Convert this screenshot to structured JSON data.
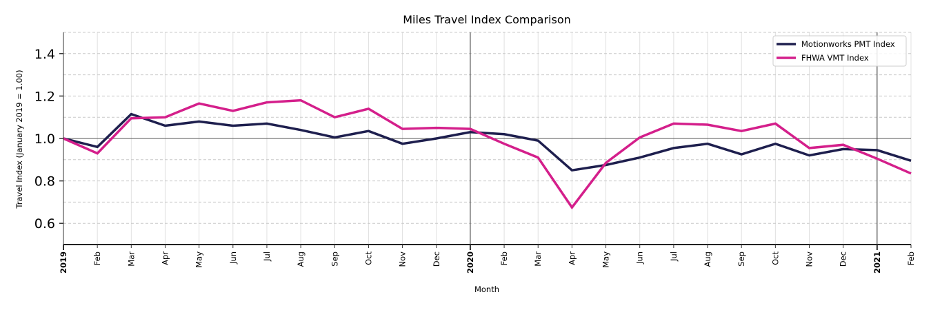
{
  "chart_data": {
    "type": "line",
    "title": "Miles Travel Index Comparison",
    "xlabel": "Month",
    "ylabel": "Travel Index (January 2019 = 1.00)",
    "ylim": [
      0.5,
      1.5
    ],
    "yticks": [
      0.6,
      0.8,
      1.0,
      1.2,
      1.4
    ],
    "ytick_labels": [
      "0.6",
      "0.8",
      "1.0",
      "1.2",
      "1.4"
    ],
    "grid": true,
    "reference_line": 1.0,
    "year_markers": [
      "2020",
      "2021"
    ],
    "legend_position": "upper right",
    "x": [
      "2019-01",
      "2019-02",
      "2019-03",
      "2019-04",
      "2019-05",
      "2019-06",
      "2019-07",
      "2019-08",
      "2019-09",
      "2019-10",
      "2019-11",
      "2019-12",
      "2020-01",
      "2020-02",
      "2020-03",
      "2020-04",
      "2020-05",
      "2020-06",
      "2020-07",
      "2020-08",
      "2020-09",
      "2020-10",
      "2020-11",
      "2020-12",
      "2021-01",
      "2021-02"
    ],
    "xtick_labels": [
      "2019",
      "Feb",
      "Mar",
      "Apr",
      "May",
      "Jun",
      "Jul",
      "Aug",
      "Sep",
      "Oct",
      "Nov",
      "Dec",
      "2020",
      "Feb",
      "Mar",
      "Apr",
      "May",
      "Jun",
      "Jul",
      "Aug",
      "Sep",
      "Oct",
      "Nov",
      "Dec",
      "2021",
      "Feb"
    ],
    "xtick_bold": [
      true,
      false,
      false,
      false,
      false,
      false,
      false,
      false,
      false,
      false,
      false,
      false,
      true,
      false,
      false,
      false,
      false,
      false,
      false,
      false,
      false,
      false,
      false,
      false,
      true,
      false
    ],
    "series": [
      {
        "name": "Motionworks PMT Index",
        "color": "#1e1f4e",
        "values": [
          1.0,
          0.96,
          1.115,
          1.06,
          1.08,
          1.06,
          1.07,
          1.04,
          1.005,
          1.035,
          0.975,
          1.0,
          1.03,
          1.02,
          0.99,
          0.85,
          0.875,
          0.91,
          0.955,
          0.975,
          0.925,
          0.975,
          0.92,
          0.95,
          0.945,
          0.895
        ]
      },
      {
        "name": "FHWA VMT Index",
        "color": "#d41f8b",
        "values": [
          1.0,
          0.93,
          1.095,
          1.1,
          1.165,
          1.13,
          1.17,
          1.18,
          1.1,
          1.14,
          1.045,
          1.05,
          1.045,
          0.975,
          0.91,
          0.675,
          0.885,
          1.005,
          1.07,
          1.065,
          1.035,
          1.07,
          0.955,
          0.97,
          0.905,
          0.835
        ]
      }
    ]
  }
}
